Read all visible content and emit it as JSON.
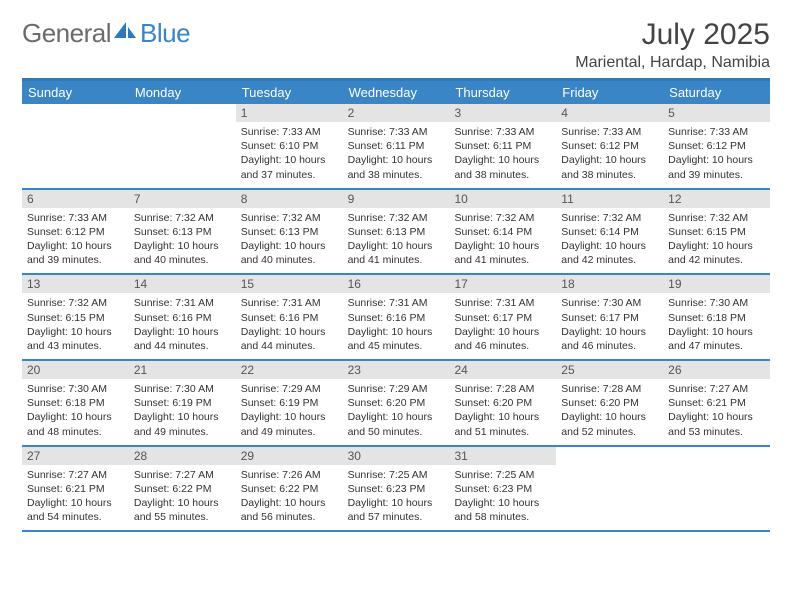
{
  "brand": {
    "general": "General",
    "blue": "Blue"
  },
  "title": "July 2025",
  "location": "Mariental, Hardap, Namibia",
  "colors": {
    "accent": "#3a85c6",
    "header_border": "#2f79b8",
    "daynum_bg": "#e4e4e4",
    "text": "#333333",
    "title_color": "#444444"
  },
  "weekdays": [
    "Sunday",
    "Monday",
    "Tuesday",
    "Wednesday",
    "Thursday",
    "Friday",
    "Saturday"
  ],
  "weeks": [
    [
      {
        "empty": true
      },
      {
        "empty": true
      },
      {
        "num": "1",
        "sunrise": "Sunrise: 7:33 AM",
        "sunset": "Sunset: 6:10 PM",
        "daylight": "Daylight: 10 hours and 37 minutes."
      },
      {
        "num": "2",
        "sunrise": "Sunrise: 7:33 AM",
        "sunset": "Sunset: 6:11 PM",
        "daylight": "Daylight: 10 hours and 38 minutes."
      },
      {
        "num": "3",
        "sunrise": "Sunrise: 7:33 AM",
        "sunset": "Sunset: 6:11 PM",
        "daylight": "Daylight: 10 hours and 38 minutes."
      },
      {
        "num": "4",
        "sunrise": "Sunrise: 7:33 AM",
        "sunset": "Sunset: 6:12 PM",
        "daylight": "Daylight: 10 hours and 38 minutes."
      },
      {
        "num": "5",
        "sunrise": "Sunrise: 7:33 AM",
        "sunset": "Sunset: 6:12 PM",
        "daylight": "Daylight: 10 hours and 39 minutes."
      }
    ],
    [
      {
        "num": "6",
        "sunrise": "Sunrise: 7:33 AM",
        "sunset": "Sunset: 6:12 PM",
        "daylight": "Daylight: 10 hours and 39 minutes."
      },
      {
        "num": "7",
        "sunrise": "Sunrise: 7:32 AM",
        "sunset": "Sunset: 6:13 PM",
        "daylight": "Daylight: 10 hours and 40 minutes."
      },
      {
        "num": "8",
        "sunrise": "Sunrise: 7:32 AM",
        "sunset": "Sunset: 6:13 PM",
        "daylight": "Daylight: 10 hours and 40 minutes."
      },
      {
        "num": "9",
        "sunrise": "Sunrise: 7:32 AM",
        "sunset": "Sunset: 6:13 PM",
        "daylight": "Daylight: 10 hours and 41 minutes."
      },
      {
        "num": "10",
        "sunrise": "Sunrise: 7:32 AM",
        "sunset": "Sunset: 6:14 PM",
        "daylight": "Daylight: 10 hours and 41 minutes."
      },
      {
        "num": "11",
        "sunrise": "Sunrise: 7:32 AM",
        "sunset": "Sunset: 6:14 PM",
        "daylight": "Daylight: 10 hours and 42 minutes."
      },
      {
        "num": "12",
        "sunrise": "Sunrise: 7:32 AM",
        "sunset": "Sunset: 6:15 PM",
        "daylight": "Daylight: 10 hours and 42 minutes."
      }
    ],
    [
      {
        "num": "13",
        "sunrise": "Sunrise: 7:32 AM",
        "sunset": "Sunset: 6:15 PM",
        "daylight": "Daylight: 10 hours and 43 minutes."
      },
      {
        "num": "14",
        "sunrise": "Sunrise: 7:31 AM",
        "sunset": "Sunset: 6:16 PM",
        "daylight": "Daylight: 10 hours and 44 minutes."
      },
      {
        "num": "15",
        "sunrise": "Sunrise: 7:31 AM",
        "sunset": "Sunset: 6:16 PM",
        "daylight": "Daylight: 10 hours and 44 minutes."
      },
      {
        "num": "16",
        "sunrise": "Sunrise: 7:31 AM",
        "sunset": "Sunset: 6:16 PM",
        "daylight": "Daylight: 10 hours and 45 minutes."
      },
      {
        "num": "17",
        "sunrise": "Sunrise: 7:31 AM",
        "sunset": "Sunset: 6:17 PM",
        "daylight": "Daylight: 10 hours and 46 minutes."
      },
      {
        "num": "18",
        "sunrise": "Sunrise: 7:30 AM",
        "sunset": "Sunset: 6:17 PM",
        "daylight": "Daylight: 10 hours and 46 minutes."
      },
      {
        "num": "19",
        "sunrise": "Sunrise: 7:30 AM",
        "sunset": "Sunset: 6:18 PM",
        "daylight": "Daylight: 10 hours and 47 minutes."
      }
    ],
    [
      {
        "num": "20",
        "sunrise": "Sunrise: 7:30 AM",
        "sunset": "Sunset: 6:18 PM",
        "daylight": "Daylight: 10 hours and 48 minutes."
      },
      {
        "num": "21",
        "sunrise": "Sunrise: 7:30 AM",
        "sunset": "Sunset: 6:19 PM",
        "daylight": "Daylight: 10 hours and 49 minutes."
      },
      {
        "num": "22",
        "sunrise": "Sunrise: 7:29 AM",
        "sunset": "Sunset: 6:19 PM",
        "daylight": "Daylight: 10 hours and 49 minutes."
      },
      {
        "num": "23",
        "sunrise": "Sunrise: 7:29 AM",
        "sunset": "Sunset: 6:20 PM",
        "daylight": "Daylight: 10 hours and 50 minutes."
      },
      {
        "num": "24",
        "sunrise": "Sunrise: 7:28 AM",
        "sunset": "Sunset: 6:20 PM",
        "daylight": "Daylight: 10 hours and 51 minutes."
      },
      {
        "num": "25",
        "sunrise": "Sunrise: 7:28 AM",
        "sunset": "Sunset: 6:20 PM",
        "daylight": "Daylight: 10 hours and 52 minutes."
      },
      {
        "num": "26",
        "sunrise": "Sunrise: 7:27 AM",
        "sunset": "Sunset: 6:21 PM",
        "daylight": "Daylight: 10 hours and 53 minutes."
      }
    ],
    [
      {
        "num": "27",
        "sunrise": "Sunrise: 7:27 AM",
        "sunset": "Sunset: 6:21 PM",
        "daylight": "Daylight: 10 hours and 54 minutes."
      },
      {
        "num": "28",
        "sunrise": "Sunrise: 7:27 AM",
        "sunset": "Sunset: 6:22 PM",
        "daylight": "Daylight: 10 hours and 55 minutes."
      },
      {
        "num": "29",
        "sunrise": "Sunrise: 7:26 AM",
        "sunset": "Sunset: 6:22 PM",
        "daylight": "Daylight: 10 hours and 56 minutes."
      },
      {
        "num": "30",
        "sunrise": "Sunrise: 7:25 AM",
        "sunset": "Sunset: 6:23 PM",
        "daylight": "Daylight: 10 hours and 57 minutes."
      },
      {
        "num": "31",
        "sunrise": "Sunrise: 7:25 AM",
        "sunset": "Sunset: 6:23 PM",
        "daylight": "Daylight: 10 hours and 58 minutes."
      },
      {
        "empty": true
      },
      {
        "empty": true
      }
    ]
  ]
}
